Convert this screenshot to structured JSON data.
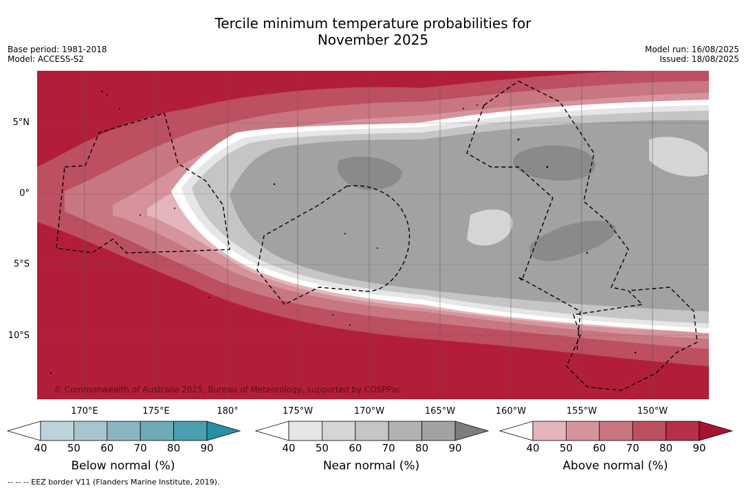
{
  "title_line1": "Tercile minimum temperature probabilities for",
  "title_line2": "November 2025",
  "base_period": "Base period: 1981-2018",
  "model": "Model: ACCESS-S2",
  "model_run": "Model run: 16/08/2025",
  "issued": "Issued: 18/08/2025",
  "copyright": "© Commonwealth of Australia 2025, Bureau of Meteorology, supported by COSPPac",
  "lat_labels": [
    "5°N",
    "0°",
    "5°S",
    "10°S"
  ],
  "lon_labels": [
    "170°E",
    "175°E",
    "180°",
    "175°W",
    "170°W",
    "165°W",
    "160°W",
    "155°W",
    "150°W"
  ],
  "colorbars": [
    {
      "label": "Below normal (%)",
      "ticks": [
        "40",
        "50",
        "60",
        "70",
        "80",
        "90"
      ],
      "colors": [
        "#ffffff",
        "#bcd3da",
        "#a6c6cd",
        "#8bb6c1",
        "#6eaab8",
        "#4a9fb0",
        "#2a8fa6"
      ]
    },
    {
      "label": "Near normal (%)",
      "ticks": [
        "40",
        "50",
        "60",
        "70",
        "80",
        "90"
      ],
      "colors": [
        "#ffffff",
        "#e6e6e6",
        "#d5d5d5",
        "#c5c5c5",
        "#b2b2b2",
        "#a2a2a2",
        "#7d7d7d"
      ]
    },
    {
      "label": "Above normal (%)",
      "ticks": [
        "40",
        "50",
        "60",
        "70",
        "80",
        "90"
      ],
      "colors": [
        "#ffffff",
        "#e4b6bc",
        "#d6939c",
        "#c87680",
        "#bc4f60",
        "#b5304a",
        "#a8142f"
      ]
    }
  ],
  "footer": "--  --  -- EEZ border V11 (Flanders Marine Institute, 2019)."
}
